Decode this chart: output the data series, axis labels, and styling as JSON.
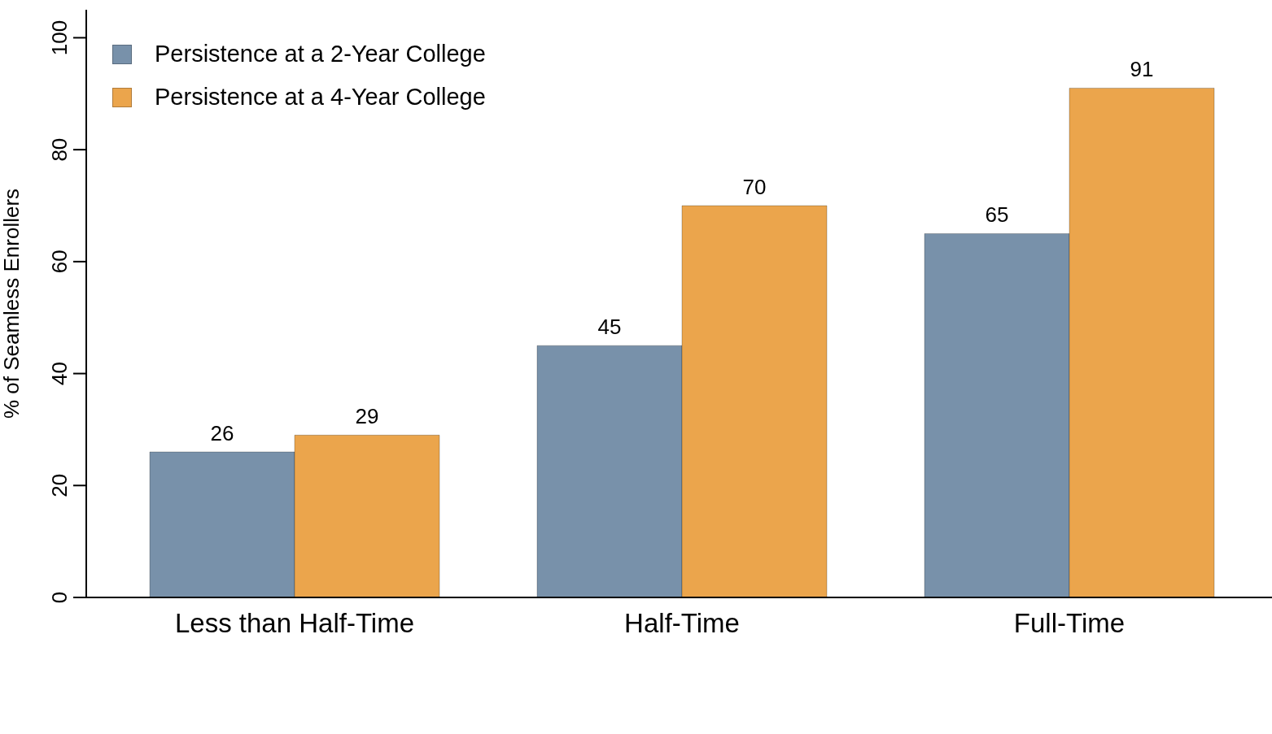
{
  "chart_data": {
    "type": "bar",
    "ylabel": "% of Seamless Enrollers",
    "categories": [
      "Less than Half-Time",
      "Half-Time",
      "Full-Time"
    ],
    "series": [
      {
        "name": "Persistence at a 2-Year College",
        "color": "#7891aa",
        "values": [
          26,
          45,
          65
        ]
      },
      {
        "name": "Persistence at a 4-Year College",
        "color": "#eba54c",
        "values": [
          29,
          70,
          91
        ]
      }
    ],
    "ylim": [
      0,
      105
    ],
    "yticks": [
      0,
      20,
      40,
      60,
      80,
      100
    ],
    "grid": false,
    "legend": "top left",
    "data_labels": true
  }
}
